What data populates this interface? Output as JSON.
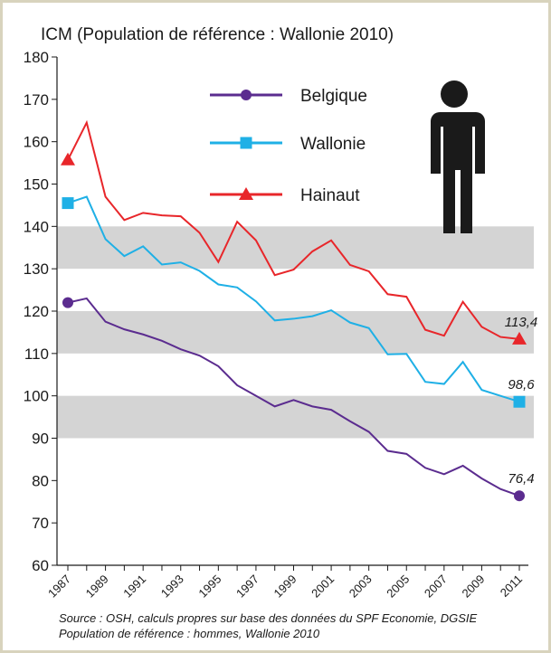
{
  "chart_data": {
    "type": "line",
    "title": "ICM (Population de référence : Wallonie 2010)",
    "x": [
      1987,
      1988,
      1989,
      1990,
      1991,
      1992,
      1993,
      1994,
      1995,
      1996,
      1997,
      1998,
      1999,
      2000,
      2001,
      2002,
      2003,
      2004,
      2005,
      2006,
      2007,
      2008,
      2009,
      2010,
      2011
    ],
    "series": [
      {
        "name": "Belgique",
        "color": "#5b2c8f",
        "marker": "circle",
        "values": [
          122,
          123,
          117.5,
          115.7,
          114.5,
          113,
          111,
          109.5,
          107,
          102.5,
          100,
          97.5,
          99,
          97.5,
          96.7,
          94,
          91.5,
          87,
          86.3,
          83,
          81.5,
          83.5,
          80.5,
          78,
          76.4
        ],
        "value_labels": [
          null,
          null,
          null,
          null,
          null,
          null,
          null,
          null,
          null,
          null,
          null,
          null,
          null,
          null,
          null,
          null,
          null,
          null,
          null,
          null,
          null,
          null,
          null,
          null,
          "76,4"
        ]
      },
      {
        "name": "Wallonie",
        "color": "#1fb0e6",
        "marker": "square",
        "values": [
          145.5,
          147,
          137,
          133,
          135.3,
          131,
          131.5,
          129.5,
          126.3,
          125.6,
          122.3,
          117.8,
          118.2,
          118.8,
          120.2,
          117.3,
          116,
          109.8,
          109.9,
          103.3,
          102.8,
          108,
          101.4,
          100,
          98.6
        ],
        "value_labels": [
          null,
          null,
          null,
          null,
          null,
          null,
          null,
          null,
          null,
          null,
          null,
          null,
          null,
          null,
          null,
          null,
          null,
          null,
          null,
          null,
          null,
          null,
          null,
          null,
          "98,6"
        ]
      },
      {
        "name": "Hainaut",
        "color": "#e8262a",
        "marker": "triangle",
        "values": [
          155.7,
          164.5,
          147,
          141.5,
          143.2,
          142.6,
          142.4,
          138.5,
          131.6,
          141.1,
          136.7,
          128.5,
          129.8,
          134.1,
          136.7,
          130.9,
          129.4,
          124,
          123.4,
          115.6,
          114.2,
          122.2,
          116.3,
          113.9,
          113.4
        ],
        "value_labels": [
          null,
          null,
          null,
          null,
          null,
          null,
          null,
          null,
          null,
          null,
          null,
          null,
          null,
          null,
          null,
          null,
          null,
          null,
          null,
          null,
          null,
          null,
          null,
          null,
          "113,4"
        ]
      }
    ],
    "xlim": [
      1987,
      2011
    ],
    "xticks": [
      1987,
      1989,
      1991,
      1993,
      1995,
      1997,
      1999,
      2001,
      2003,
      2005,
      2007,
      2009,
      2011
    ],
    "ylim": [
      60,
      180
    ],
    "yticks": [
      60,
      70,
      80,
      90,
      100,
      110,
      120,
      130,
      140,
      150,
      160,
      170,
      180
    ],
    "bands": [
      [
        90,
        100
      ],
      [
        110,
        120
      ],
      [
        130,
        140
      ]
    ],
    "band_color": "#d4d4d4",
    "source": "Source : OSH, calculs propres sur base des données du SPF Economie, DGSIE",
    "note": "Population de référence : hommes, Wallonie 2010"
  }
}
